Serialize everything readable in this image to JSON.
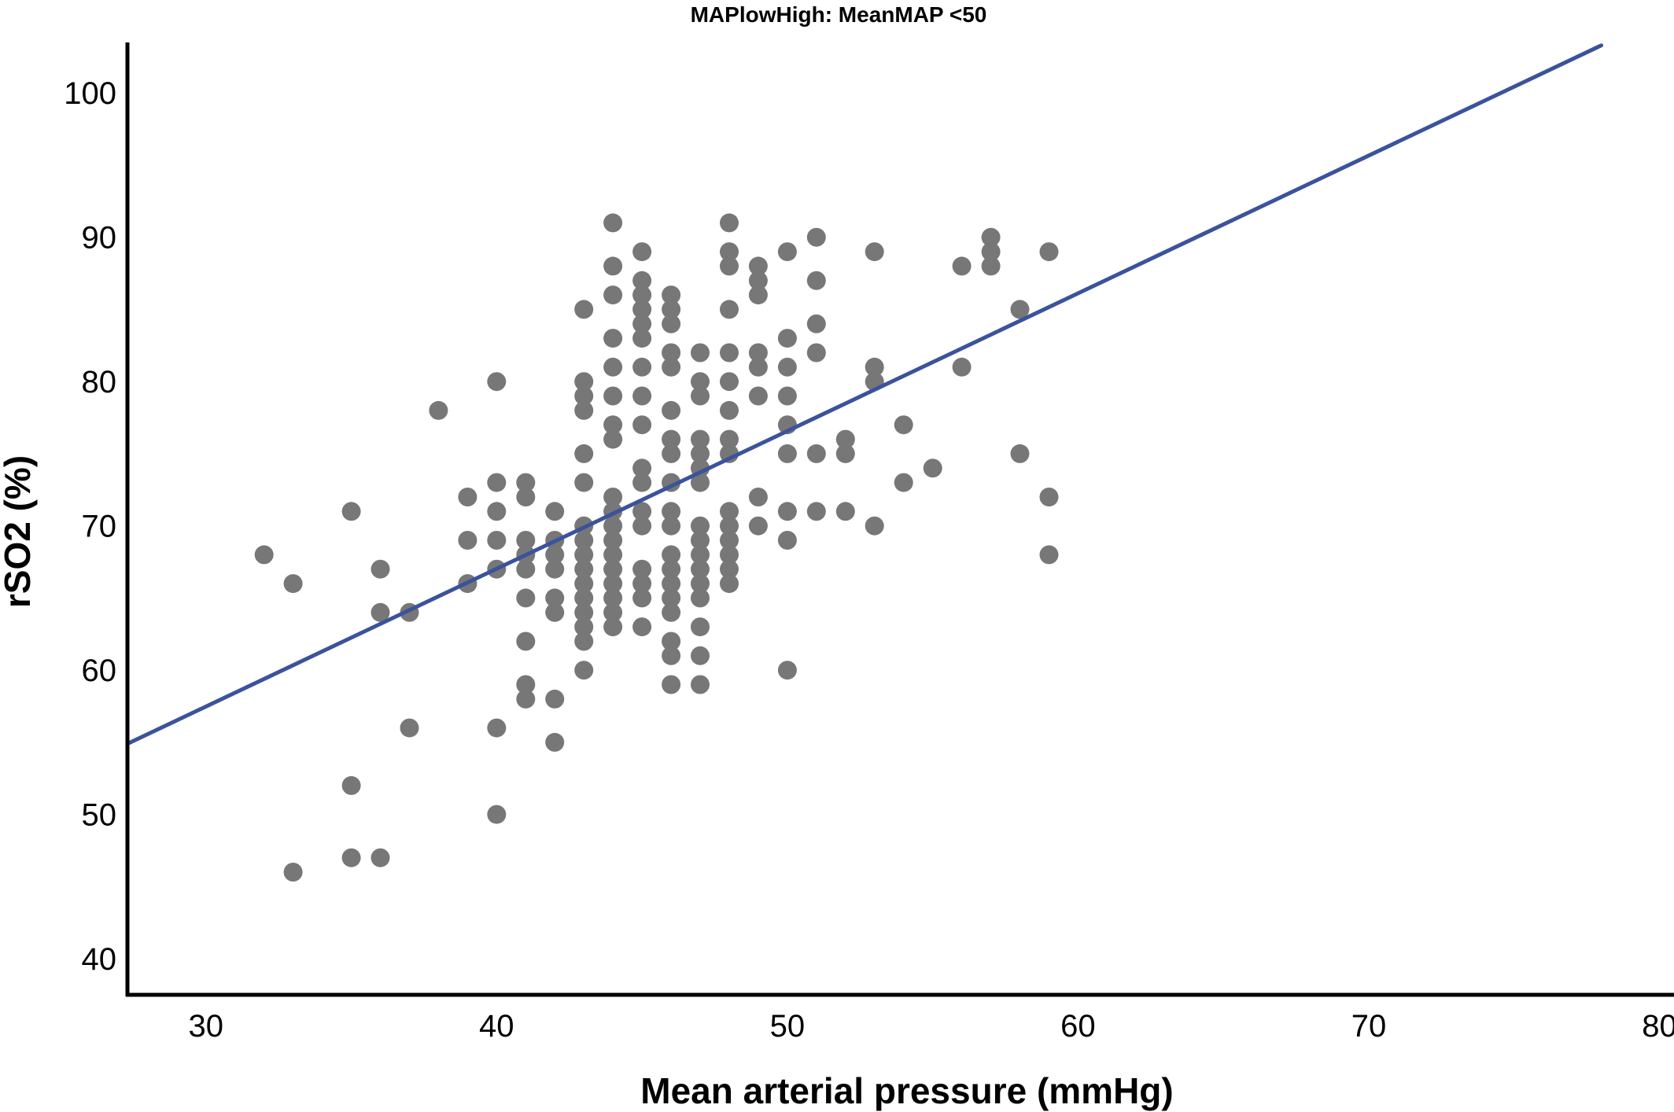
{
  "chart_data": {
    "type": "scatter",
    "title": "MAPlowHigh: MeanMAP <50",
    "xlabel": "Mean arterial pressure (mmHg)",
    "ylabel": "rSO2 (%)",
    "xlim": [
      27.3,
      80.5
    ],
    "ylim": [
      37.5,
      103.5
    ],
    "xticks": [
      30,
      40,
      50,
      60,
      70,
      80
    ],
    "yticks": [
      40,
      50,
      60,
      70,
      80,
      90,
      100
    ],
    "point_color": "#777777",
    "line_color": "#3a539b",
    "axis_color": "#000000",
    "fit_line": {
      "x": [
        27.3,
        78
      ],
      "y": [
        54.9,
        103.3
      ]
    },
    "points": [
      [
        32,
        68
      ],
      [
        33,
        66
      ],
      [
        33,
        46
      ],
      [
        35,
        71
      ],
      [
        35,
        52
      ],
      [
        35,
        47
      ],
      [
        36,
        67
      ],
      [
        36,
        64
      ],
      [
        36,
        47
      ],
      [
        37,
        64
      ],
      [
        37,
        56
      ],
      [
        38,
        78
      ],
      [
        39,
        72
      ],
      [
        39,
        69
      ],
      [
        39,
        66
      ],
      [
        40,
        80
      ],
      [
        40,
        73
      ],
      [
        40,
        71
      ],
      [
        40,
        69
      ],
      [
        40,
        67
      ],
      [
        40,
        56
      ],
      [
        40,
        50
      ],
      [
        41,
        73
      ],
      [
        41,
        72
      ],
      [
        41,
        69
      ],
      [
        41,
        68
      ],
      [
        41,
        67
      ],
      [
        41,
        65
      ],
      [
        41,
        62
      ],
      [
        41,
        59
      ],
      [
        41,
        58
      ],
      [
        42,
        71
      ],
      [
        42,
        69
      ],
      [
        42,
        68
      ],
      [
        42,
        67
      ],
      [
        42,
        65
      ],
      [
        42,
        64
      ],
      [
        42,
        58
      ],
      [
        42,
        55
      ],
      [
        43,
        85
      ],
      [
        43,
        80
      ],
      [
        43,
        79
      ],
      [
        43,
        78
      ],
      [
        43,
        75
      ],
      [
        43,
        73
      ],
      [
        43,
        70
      ],
      [
        43,
        69
      ],
      [
        43,
        68
      ],
      [
        43,
        67
      ],
      [
        43,
        66
      ],
      [
        43,
        65
      ],
      [
        43,
        64
      ],
      [
        43,
        63
      ],
      [
        43,
        62
      ],
      [
        43,
        60
      ],
      [
        44,
        91
      ],
      [
        44,
        88
      ],
      [
        44,
        86
      ],
      [
        44,
        83
      ],
      [
        44,
        81
      ],
      [
        44,
        79
      ],
      [
        44,
        77
      ],
      [
        44,
        76
      ],
      [
        44,
        72
      ],
      [
        44,
        71
      ],
      [
        44,
        70
      ],
      [
        44,
        69
      ],
      [
        44,
        68
      ],
      [
        44,
        67
      ],
      [
        44,
        66
      ],
      [
        44,
        65
      ],
      [
        44,
        64
      ],
      [
        44,
        63
      ],
      [
        45,
        89
      ],
      [
        45,
        87
      ],
      [
        45,
        86
      ],
      [
        45,
        85
      ],
      [
        45,
        84
      ],
      [
        45,
        83
      ],
      [
        45,
        81
      ],
      [
        45,
        79
      ],
      [
        45,
        77
      ],
      [
        45,
        74
      ],
      [
        45,
        73
      ],
      [
        45,
        71
      ],
      [
        45,
        70
      ],
      [
        45,
        67
      ],
      [
        45,
        66
      ],
      [
        45,
        65
      ],
      [
        45,
        63
      ],
      [
        46,
        86
      ],
      [
        46,
        85
      ],
      [
        46,
        84
      ],
      [
        46,
        82
      ],
      [
        46,
        81
      ],
      [
        46,
        78
      ],
      [
        46,
        76
      ],
      [
        46,
        75
      ],
      [
        46,
        73
      ],
      [
        46,
        71
      ],
      [
        46,
        70
      ],
      [
        46,
        68
      ],
      [
        46,
        67
      ],
      [
        46,
        66
      ],
      [
        46,
        65
      ],
      [
        46,
        64
      ],
      [
        46,
        62
      ],
      [
        46,
        61
      ],
      [
        46,
        59
      ],
      [
        47,
        82
      ],
      [
        47,
        80
      ],
      [
        47,
        79
      ],
      [
        47,
        76
      ],
      [
        47,
        75
      ],
      [
        47,
        74
      ],
      [
        47,
        73
      ],
      [
        47,
        70
      ],
      [
        47,
        69
      ],
      [
        47,
        68
      ],
      [
        47,
        67
      ],
      [
        47,
        66
      ],
      [
        47,
        65
      ],
      [
        47,
        63
      ],
      [
        47,
        61
      ],
      [
        47,
        59
      ],
      [
        48,
        91
      ],
      [
        48,
        89
      ],
      [
        48,
        88
      ],
      [
        48,
        85
      ],
      [
        48,
        82
      ],
      [
        48,
        80
      ],
      [
        48,
        78
      ],
      [
        48,
        76
      ],
      [
        48,
        75
      ],
      [
        48,
        71
      ],
      [
        48,
        70
      ],
      [
        48,
        69
      ],
      [
        48,
        68
      ],
      [
        48,
        67
      ],
      [
        48,
        66
      ],
      [
        49,
        88
      ],
      [
        49,
        87
      ],
      [
        49,
        86
      ],
      [
        49,
        82
      ],
      [
        49,
        81
      ],
      [
        49,
        79
      ],
      [
        49,
        72
      ],
      [
        49,
        70
      ],
      [
        50,
        89
      ],
      [
        50,
        83
      ],
      [
        50,
        81
      ],
      [
        50,
        79
      ],
      [
        50,
        77
      ],
      [
        50,
        75
      ],
      [
        50,
        71
      ],
      [
        50,
        69
      ],
      [
        50,
        60
      ],
      [
        51,
        90
      ],
      [
        51,
        87
      ],
      [
        51,
        84
      ],
      [
        51,
        82
      ],
      [
        51,
        75
      ],
      [
        51,
        71
      ],
      [
        52,
        76
      ],
      [
        52,
        75
      ],
      [
        52,
        71
      ],
      [
        53,
        89
      ],
      [
        53,
        81
      ],
      [
        53,
        80
      ],
      [
        53,
        70
      ],
      [
        54,
        77
      ],
      [
        54,
        73
      ],
      [
        55,
        74
      ],
      [
        56,
        88
      ],
      [
        56,
        81
      ],
      [
        57,
        90
      ],
      [
        57,
        89
      ],
      [
        57,
        88
      ],
      [
        58,
        85
      ],
      [
        58,
        75
      ],
      [
        59,
        89
      ],
      [
        59,
        72
      ],
      [
        59,
        68
      ]
    ]
  }
}
